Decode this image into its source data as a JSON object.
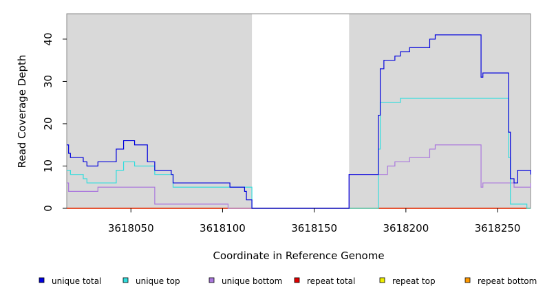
{
  "chart_data": {
    "type": "line",
    "xlabel": "Coordinate in Reference Genome",
    "ylabel": "Read Coverage Depth",
    "xlim": [
      3618015,
      3618268
    ],
    "ylim": [
      0,
      46
    ],
    "x_ticks": [
      3618050,
      3618100,
      3618150,
      3618200,
      3618250
    ],
    "y_ticks": [
      0,
      10,
      20,
      30,
      40
    ],
    "shaded_regions": [
      {
        "from": 3618015,
        "to": 3618116
      },
      {
        "from": 3618169,
        "to": 3618268
      }
    ],
    "legend_position": "bottom",
    "series": [
      {
        "name": "unique total",
        "color": "#0000dd",
        "x": [
          3618015,
          3618016,
          3618017,
          3618024,
          3618026,
          3618032,
          3618042,
          3618046,
          3618052,
          3618059,
          3618063,
          3618072,
          3618073,
          3618104,
          3618112,
          3618113,
          3618116,
          3618169,
          3618185,
          3618186,
          3618188,
          3618194,
          3618197,
          3618202,
          3618213,
          3618216,
          3618241,
          3618242,
          3618256,
          3618257,
          3618259,
          3618261,
          3618268
        ],
        "y": [
          15,
          13,
          12,
          11,
          10,
          11,
          14,
          16,
          15,
          11,
          9,
          8,
          6,
          5,
          4,
          2,
          0,
          8,
          22,
          33,
          35,
          36,
          37,
          38,
          40,
          41,
          31,
          32,
          18,
          7,
          6,
          9,
          8
        ]
      },
      {
        "name": "unique top",
        "color": "#33dddd",
        "x": [
          3618015,
          3618017,
          3618024,
          3618026,
          3618042,
          3618046,
          3618052,
          3618063,
          3618073,
          3618104,
          3618116,
          3618169,
          3618185,
          3618186,
          3618197,
          3618256,
          3618257,
          3618266,
          3618268
        ],
        "y": [
          9,
          8,
          7,
          6,
          9,
          11,
          10,
          8,
          5,
          5,
          0,
          0,
          14,
          25,
          26,
          12,
          1,
          0,
          0
        ]
      },
      {
        "name": "unique bottom",
        "color": "#aa77dd",
        "x": [
          3618015,
          3618016,
          3618032,
          3618063,
          3618103,
          3618104,
          3618116,
          3618169,
          3618186,
          3618190,
          3618194,
          3618202,
          3618213,
          3618216,
          3618241,
          3618242,
          3618257,
          3618259,
          3618268
        ],
        "y": [
          6,
          4,
          5,
          1,
          0,
          0,
          0,
          8,
          8,
          10,
          11,
          12,
          14,
          15,
          5,
          6,
          6,
          5,
          6
        ]
      },
      {
        "name": "repeat total",
        "color": "#dd0000",
        "x": [
          3618015,
          3618268
        ],
        "y": [
          0,
          0
        ]
      },
      {
        "name": "repeat top",
        "color": "#eeee00",
        "x": [
          3618015,
          3618268
        ],
        "y": [
          0,
          0
        ]
      },
      {
        "name": "repeat bottom",
        "color": "#ff9900",
        "x": [
          3618015,
          3618268
        ],
        "y": [
          0,
          0
        ]
      }
    ]
  }
}
